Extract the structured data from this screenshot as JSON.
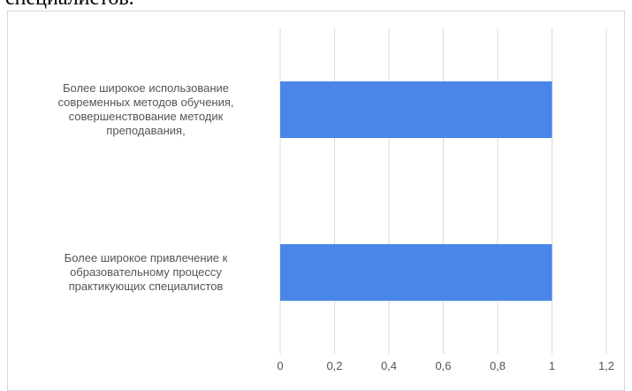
{
  "header_text": "специалистов.",
  "chart_data": {
    "type": "bar",
    "orientation": "horizontal",
    "categories": [
      [
        "Более широкое использование",
        "современных методов обучения,",
        "совершенствование методик",
        "преподавания,"
      ],
      [
        "Более широкое привлечение к",
        "образовательному процессу",
        "практикующих  специалистов"
      ]
    ],
    "values": [
      1,
      1
    ],
    "xlim": [
      0,
      1.2
    ],
    "x_ticks": [
      "0",
      "0,2",
      "0,4",
      "0,6",
      "0,8",
      "1",
      "1,2"
    ],
    "grid": true,
    "bar_color": "#4a86e8",
    "grid_color": "#d9d9d9"
  }
}
